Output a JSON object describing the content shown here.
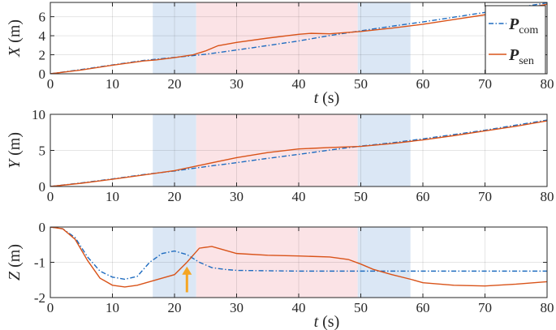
{
  "chart_data": [
    {
      "type": "line",
      "ylabel_var": "X",
      "ylabel_unit": " (m)",
      "xlabel_var": "t",
      "xlabel_unit": " (s)",
      "xlim": [
        0,
        80
      ],
      "ylim": [
        0,
        7.5
      ],
      "xticks": [
        0,
        10,
        20,
        30,
        40,
        50,
        60,
        70,
        80
      ],
      "yticks": [
        0,
        2,
        4,
        6
      ],
      "grid": true,
      "shaded_regions": [
        {
          "x": [
            16.5,
            23.5
          ],
          "color": "#dbe7f5"
        },
        {
          "x": [
            23.5,
            49.5
          ],
          "color": "#fbe3e6"
        },
        {
          "x": [
            49.5,
            58
          ],
          "color": "#dbe7f5"
        }
      ],
      "legend": {
        "placement": "top-right",
        "entries": [
          {
            "var": "P",
            "sub": "com",
            "color": "#1f6cc0",
            "style": "dash-dot"
          },
          {
            "var": "P",
            "sub": "sen",
            "color": "#d95319",
            "style": "solid"
          }
        ]
      },
      "series": [
        {
          "name": "P_com",
          "color": "#1f6cc0",
          "style": "dash-dot",
          "x": [
            0,
            5,
            10,
            15,
            20,
            25,
            30,
            35,
            40,
            45,
            50,
            55,
            60,
            65,
            70,
            75,
            80
          ],
          "y": [
            0,
            0.45,
            0.93,
            1.4,
            1.72,
            2.05,
            2.5,
            2.97,
            3.45,
            4.02,
            4.52,
            5.0,
            5.45,
            5.95,
            6.45,
            6.95,
            7.45
          ]
        },
        {
          "name": "P_sen",
          "color": "#d95319",
          "style": "solid",
          "x": [
            0,
            5,
            10,
            15,
            17,
            20,
            23,
            25,
            27,
            30,
            35,
            40,
            42,
            45,
            50,
            55,
            60,
            65,
            70,
            75,
            80
          ],
          "y": [
            0,
            0.4,
            0.9,
            1.35,
            1.45,
            1.7,
            2.0,
            2.4,
            2.95,
            3.3,
            3.75,
            4.15,
            4.25,
            4.2,
            4.45,
            4.8,
            5.2,
            5.7,
            6.2,
            6.75,
            7.3
          ]
        }
      ]
    },
    {
      "type": "line",
      "ylabel_var": "Y",
      "ylabel_unit": " (m)",
      "xlim": [
        0,
        80
      ],
      "ylim": [
        0,
        10
      ],
      "xticks": [
        0,
        10,
        20,
        30,
        40,
        50,
        60,
        70,
        80
      ],
      "yticks": [
        0,
        5,
        10
      ],
      "grid": true,
      "shaded_regions": [
        {
          "x": [
            16.5,
            23.5
          ],
          "color": "#dbe7f5"
        },
        {
          "x": [
            23.5,
            49.5
          ],
          "color": "#fbe3e6"
        },
        {
          "x": [
            49.5,
            58
          ],
          "color": "#dbe7f5"
        }
      ],
      "series": [
        {
          "name": "P_com",
          "color": "#1f6cc0",
          "style": "dash-dot",
          "x": [
            0,
            5,
            10,
            15,
            20,
            25,
            30,
            35,
            40,
            45,
            50,
            55,
            60,
            65,
            70,
            75,
            80
          ],
          "y": [
            0,
            0.5,
            1.05,
            1.65,
            2.15,
            2.75,
            3.3,
            3.9,
            4.45,
            5.05,
            5.6,
            6.05,
            6.6,
            7.2,
            7.8,
            8.5,
            9.2
          ]
        },
        {
          "name": "P_sen",
          "color": "#d95319",
          "style": "solid",
          "x": [
            0,
            5,
            10,
            15,
            20,
            25,
            30,
            35,
            40,
            45,
            50,
            55,
            60,
            65,
            70,
            75,
            80
          ],
          "y": [
            0,
            0.45,
            1.0,
            1.6,
            2.2,
            3.1,
            4.0,
            4.7,
            5.2,
            5.4,
            5.55,
            5.95,
            6.45,
            7.05,
            7.7,
            8.35,
            9.1
          ]
        }
      ]
    },
    {
      "type": "line",
      "ylabel_var": "Z",
      "ylabel_unit": " (m)",
      "xlabel_var": "t",
      "xlabel_unit": " (s)",
      "xlim": [
        0,
        80
      ],
      "ylim": [
        -2,
        0
      ],
      "xticks": [
        0,
        10,
        20,
        30,
        40,
        50,
        60,
        70,
        80
      ],
      "yticks": [
        0,
        -1,
        -2
      ],
      "ytick_labels": [
        "0",
        "-1",
        "-2"
      ],
      "grid": true,
      "shaded_regions": [
        {
          "x": [
            16.5,
            23.5
          ],
          "color": "#dbe7f5"
        },
        {
          "x": [
            23.5,
            49.5
          ],
          "color": "#fbe3e6"
        },
        {
          "x": [
            49.5,
            58
          ],
          "color": "#dbe7f5"
        }
      ],
      "annotation": {
        "type": "arrow",
        "color": "#f5a623",
        "x": 22,
        "y_from": -1.85,
        "y_to": -1.12
      },
      "series": [
        {
          "name": "P_com",
          "color": "#1f6cc0",
          "style": "dash-dot",
          "x": [
            0,
            2,
            4,
            6,
            8,
            10,
            12,
            14,
            16,
            18,
            20,
            22,
            24,
            26,
            28,
            30,
            35,
            40,
            50,
            60,
            70,
            80
          ],
          "y": [
            0,
            -0.05,
            -0.3,
            -0.85,
            -1.25,
            -1.42,
            -1.48,
            -1.4,
            -1.0,
            -0.75,
            -0.68,
            -0.78,
            -1.0,
            -1.15,
            -1.2,
            -1.23,
            -1.24,
            -1.25,
            -1.25,
            -1.25,
            -1.25,
            -1.25
          ]
        },
        {
          "name": "P_sen",
          "color": "#d95319",
          "style": "solid",
          "x": [
            0,
            2,
            4,
            6,
            8,
            10,
            12,
            14,
            16,
            18,
            20,
            22,
            24,
            26,
            28,
            30,
            35,
            40,
            45,
            48,
            50,
            52,
            55,
            58,
            60,
            65,
            70,
            75,
            80
          ],
          "y": [
            0,
            -0.05,
            -0.35,
            -0.95,
            -1.45,
            -1.65,
            -1.7,
            -1.65,
            -1.55,
            -1.45,
            -1.35,
            -1.0,
            -0.6,
            -0.55,
            -0.65,
            -0.75,
            -0.8,
            -0.82,
            -0.85,
            -0.92,
            -1.05,
            -1.2,
            -1.35,
            -1.48,
            -1.58,
            -1.65,
            -1.67,
            -1.62,
            -1.55
          ]
        }
      ]
    }
  ]
}
